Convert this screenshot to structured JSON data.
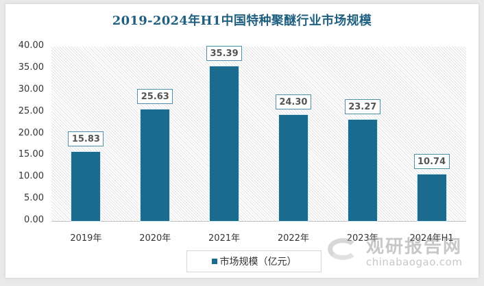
{
  "chart_data": {
    "type": "bar",
    "title": "2019-2024年H1中国特种聚醚行业市场规模",
    "categories": [
      "2019年",
      "2020年",
      "2021年",
      "2022年",
      "2023年",
      "2024年H1"
    ],
    "series": [
      {
        "name": "市场规模（亿元）",
        "values": [
          15.83,
          25.63,
          35.39,
          24.3,
          23.27,
          10.74
        ],
        "color": "#1b6b8f"
      }
    ],
    "value_labels": [
      "15.83",
      "25.63",
      "35.39",
      "24.30",
      "23.27",
      "10.74"
    ],
    "xlabel": "",
    "ylabel": "",
    "ylim": [
      0,
      40
    ],
    "yticks": [
      "0.00",
      "5.00",
      "10.00",
      "15.00",
      "20.00",
      "25.00",
      "30.00",
      "35.00",
      "40.00"
    ],
    "grid": false,
    "legend_position": "bottom"
  },
  "legend": {
    "label": "市场规模（亿元）"
  },
  "watermark": {
    "cn": "观研报告网",
    "en": "chinabaogao.com"
  }
}
